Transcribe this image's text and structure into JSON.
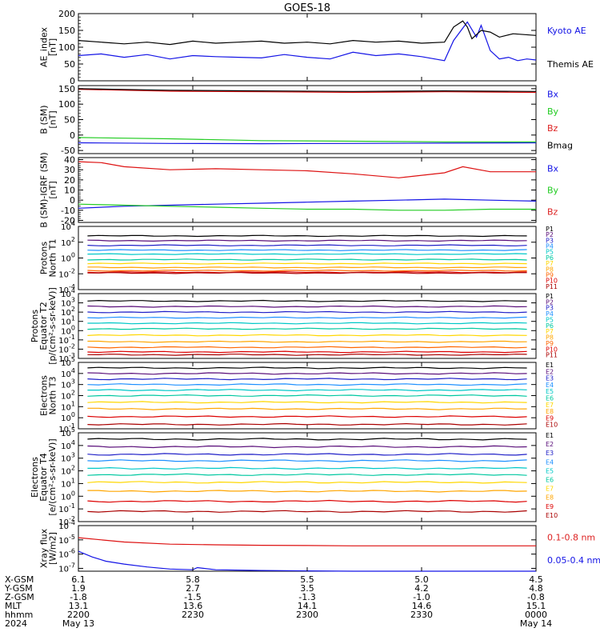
{
  "title": "GOES-18",
  "colors": {
    "black": "#000000",
    "blue": "#1414e6",
    "green": "#22cc22",
    "red": "#dd1111",
    "legend_red": "#dd2222"
  },
  "chart_data": [
    {
      "type": "line",
      "ylabel": [
        "AE_index",
        "[nT]"
      ],
      "ylim": [
        0,
        200
      ],
      "yticks": [
        "0",
        "50",
        "100",
        "150",
        "200"
      ],
      "series": [
        {
          "name": "Kyoto AE",
          "color": "blue",
          "x": [
            0,
            0.05,
            0.1,
            0.15,
            0.2,
            0.25,
            0.3,
            0.35,
            0.4,
            0.45,
            0.5,
            0.55,
            0.6,
            0.65,
            0.7,
            0.75,
            0.8,
            0.82,
            0.85,
            0.87,
            0.88,
            0.9,
            0.92,
            0.94,
            0.96,
            0.98,
            1.0
          ],
          "values": [
            75,
            80,
            70,
            78,
            65,
            75,
            72,
            70,
            68,
            78,
            70,
            65,
            85,
            75,
            80,
            72,
            60,
            120,
            175,
            130,
            165,
            90,
            65,
            70,
            60,
            65,
            62
          ]
        },
        {
          "name": "Themis AE",
          "color": "black",
          "x": [
            0,
            0.05,
            0.1,
            0.15,
            0.2,
            0.25,
            0.3,
            0.35,
            0.4,
            0.45,
            0.5,
            0.55,
            0.6,
            0.65,
            0.7,
            0.75,
            0.8,
            0.82,
            0.84,
            0.85,
            0.86,
            0.88,
            0.9,
            0.92,
            0.95,
            1.0
          ],
          "values": [
            120,
            115,
            110,
            115,
            108,
            118,
            112,
            115,
            118,
            112,
            115,
            110,
            120,
            115,
            118,
            112,
            115,
            160,
            178,
            160,
            125,
            150,
            145,
            130,
            140,
            135
          ]
        }
      ],
      "legend": [
        "Kyoto AE",
        "Themis AE"
      ]
    },
    {
      "type": "line",
      "ylabel": [
        "B (SM)",
        "[nT]"
      ],
      "ylim": [
        -60,
        160
      ],
      "yticks": [
        "-50",
        "0",
        "50",
        "100",
        "150"
      ],
      "series": [
        {
          "name": "Bx",
          "color": "blue",
          "x": [
            0,
            0.2,
            0.4,
            0.6,
            0.8,
            1.0
          ],
          "values": [
            -25,
            -27,
            -28,
            -27,
            -26,
            -25
          ]
        },
        {
          "name": "By",
          "color": "green",
          "x": [
            0,
            0.2,
            0.4,
            0.6,
            0.8,
            1.0
          ],
          "values": [
            -8,
            -12,
            -18,
            -20,
            -22,
            -22
          ]
        },
        {
          "name": "Bz",
          "color": "red",
          "x": [
            0,
            0.2,
            0.4,
            0.6,
            0.8,
            1.0
          ],
          "values": [
            148,
            142,
            140,
            138,
            140,
            138
          ]
        },
        {
          "name": "Bmag",
          "color": "black",
          "x": [
            0,
            0.2,
            0.4,
            0.6,
            0.8,
            1.0
          ],
          "values": [
            150,
            145,
            143,
            141,
            143,
            141
          ]
        }
      ],
      "legend": [
        "Bx",
        "By",
        "Bz",
        "Bmag"
      ]
    },
    {
      "type": "line",
      "ylabel": [
        "B (SM)-IGRF (SM)",
        "[nT]"
      ],
      "ylim": [
        -22,
        42
      ],
      "yticks": [
        "-20",
        "-10",
        "0",
        "10",
        "20",
        "30",
        "40"
      ],
      "series": [
        {
          "name": "Bx",
          "color": "blue",
          "x": [
            0,
            0.1,
            0.2,
            0.3,
            0.4,
            0.5,
            0.6,
            0.7,
            0.8,
            0.9,
            1.0
          ],
          "values": [
            -8,
            -6,
            -5,
            -4,
            -3,
            -2,
            -1,
            0,
            1,
            0,
            -1
          ]
        },
        {
          "name": "By",
          "color": "green",
          "x": [
            0,
            0.1,
            0.2,
            0.3,
            0.4,
            0.5,
            0.6,
            0.7,
            0.8,
            0.9,
            1.0
          ],
          "values": [
            -4,
            -5,
            -6,
            -7,
            -8,
            -9,
            -9,
            -10,
            -10,
            -9,
            -9
          ]
        },
        {
          "name": "Bz",
          "color": "red",
          "x": [
            0,
            0.05,
            0.1,
            0.2,
            0.3,
            0.4,
            0.5,
            0.6,
            0.7,
            0.8,
            0.84,
            0.9,
            1.0
          ],
          "values": [
            38,
            37,
            33,
            30,
            31,
            30,
            29,
            26,
            22,
            27,
            33,
            28,
            28
          ]
        }
      ],
      "legend": [
        "Bx",
        "By",
        "Bz"
      ]
    },
    {
      "type": "line",
      "log": true,
      "ylabel": [
        "Protons",
        "North T1"
      ],
      "ylim_exp": [
        -4,
        4
      ],
      "yticks_exp": [
        -4,
        -2,
        0,
        2,
        4
      ],
      "channels": [
        "P1",
        "P2",
        "P3",
        "P4",
        "P5",
        "P6",
        "P7",
        "P8",
        "P9",
        "P10",
        "P11"
      ],
      "levels_exp": [
        2.8,
        2.2,
        1.6,
        1.0,
        0.5,
        -0.2,
        -0.7,
        -1.2,
        -1.6,
        -1.8,
        -1.9
      ]
    },
    {
      "type": "line",
      "log": true,
      "ylabel": [
        "Protons",
        "Equator T2",
        "[p/(cm²-s-sr-keV)]"
      ],
      "ylim_exp": [
        -3,
        4
      ],
      "yticks_exp": [
        -3,
        -2,
        -1,
        0,
        1,
        2,
        3,
        4
      ],
      "channels": [
        "P1",
        "P2",
        "P3",
        "P4",
        "P5",
        "P6",
        "P7",
        "P8",
        "P9",
        "P10",
        "P11"
      ],
      "levels_exp": [
        3.2,
        2.6,
        2.0,
        1.4,
        0.8,
        0.2,
        -0.5,
        -1.2,
        -1.8,
        -2.3,
        -2.6
      ]
    },
    {
      "type": "line",
      "log": true,
      "ylabel": [
        "Electrons",
        "North T3"
      ],
      "ylim_exp": [
        -1,
        5
      ],
      "yticks_exp": [
        -1,
        0,
        1,
        2,
        3,
        4,
        5
      ],
      "channels": [
        "E1",
        "E2",
        "E3",
        "E4",
        "E5",
        "E6",
        "E7",
        "E8",
        "E9",
        "E10"
      ],
      "levels_exp": [
        4.5,
        4.0,
        3.5,
        3.0,
        2.5,
        2.0,
        1.4,
        0.8,
        0.1,
        -0.6
      ]
    },
    {
      "type": "line",
      "log": true,
      "ylabel": [
        "Electrons",
        "Equator T4",
        "[e/(cm²-s-sr-keV)]"
      ],
      "ylim_exp": [
        -2,
        5
      ],
      "yticks_exp": [
        -2,
        -1,
        0,
        1,
        2,
        3,
        4,
        5
      ],
      "channels": [
        "E1",
        "E2",
        "E3",
        "E4",
        "E5",
        "E6",
        "E7",
        "E8",
        "E9",
        "E10"
      ],
      "levels_exp": [
        4.5,
        3.9,
        3.3,
        2.8,
        2.2,
        1.7,
        1.1,
        0.4,
        -0.4,
        -1.2
      ]
    },
    {
      "type": "line",
      "log": true,
      "ylabel": [
        "Xray flux",
        "[W/m2]"
      ],
      "ylim_exp": [
        -7.2,
        -4
      ],
      "yticks_exp": [
        -7,
        -6,
        -5,
        -4
      ],
      "series": [
        {
          "name": "0.1-0.8 nm",
          "color": "red",
          "x": [
            0,
            0.05,
            0.1,
            0.2,
            0.3,
            0.4,
            0.5,
            0.6,
            0.7,
            0.8,
            0.9,
            1.0
          ],
          "values_exp": [
            -4.85,
            -5.0,
            -5.15,
            -5.3,
            -5.35,
            -5.38,
            -5.4,
            -5.42,
            -5.42,
            -5.42,
            -5.42,
            -5.42
          ]
        },
        {
          "name": "0.05-0.4 nm",
          "color": "blue",
          "x": [
            0,
            0.03,
            0.06,
            0.1,
            0.15,
            0.2,
            0.25,
            0.26,
            0.3,
            0.4,
            0.5,
            0.6,
            0.7,
            0.8,
            0.9,
            1.0
          ],
          "values_exp": [
            -5.8,
            -6.2,
            -6.5,
            -6.7,
            -6.9,
            -7.05,
            -7.1,
            -6.95,
            -7.1,
            -7.15,
            -7.18,
            -7.2,
            -7.2,
            -7.2,
            -7.2,
            -7.2
          ]
        }
      ],
      "legend": [
        "0.1-0.8 nm",
        "0.05-0.4 nm"
      ]
    }
  ],
  "channel_colors": {
    "P1": "#000000",
    "P2": "#5a0f7a",
    "P3": "#2020c8",
    "P4": "#1e90ff",
    "P5": "#00c8c8",
    "P6": "#00c8a0",
    "P7": "#ffd700",
    "P8": "#ffa500",
    "P9": "#ff6600",
    "P10": "#dd0000",
    "P11": "#aa0000",
    "E1": "#000000",
    "E2": "#5a0f7a",
    "E3": "#2020c8",
    "E4": "#1e90ff",
    "E5": "#00c8c8",
    "E6": "#00c8a0",
    "E7": "#ffd700",
    "E8": "#ffa500",
    "E9": "#dd0000",
    "E10": "#aa0000"
  },
  "x_axis": {
    "row_labels": [
      "X-GSM",
      "Y-GSM",
      "Z-GSM",
      "MLT",
      "hhmm",
      "2024"
    ],
    "ticks": [
      {
        "pos": 0.0,
        "values": [
          "6.1",
          "1.9",
          "-1.8",
          "13.1",
          "2200",
          "May 13"
        ]
      },
      {
        "pos": 0.25,
        "values": [
          "5.8",
          "2.7",
          "-1.5",
          "13.6",
          "2230",
          ""
        ]
      },
      {
        "pos": 0.5,
        "values": [
          "5.5",
          "3.5",
          "-1.3",
          "14.1",
          "2300",
          ""
        ]
      },
      {
        "pos": 0.75,
        "values": [
          "5.0",
          "4.2",
          "-1.0",
          "14.6",
          "2330",
          ""
        ]
      },
      {
        "pos": 1.0,
        "values": [
          "4.5",
          "4.8",
          "-0.8",
          "15.1",
          "0000",
          "May 14"
        ]
      }
    ]
  }
}
